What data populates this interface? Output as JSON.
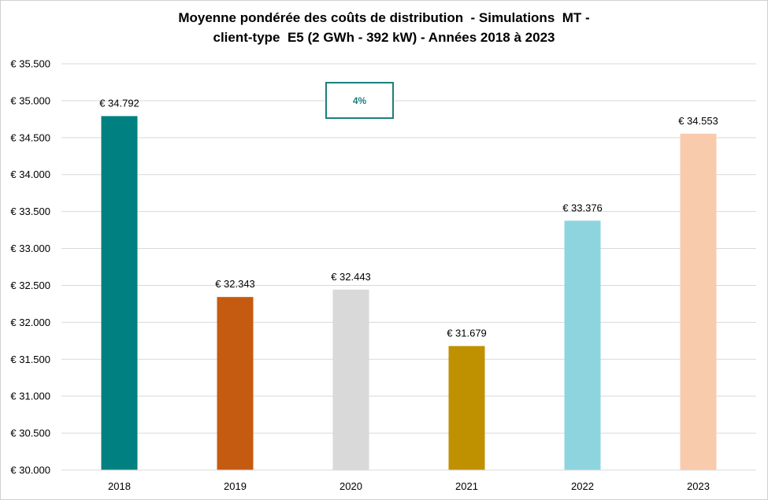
{
  "chart_data": {
    "type": "bar",
    "title": [
      "Moyenne pondérée des coûts de distribution  - Simulations  MT -",
      "client-type  E5 (2 GWh - 392 kW) - Années 2018 à 2023"
    ],
    "categories": [
      "2018",
      "2019",
      "2020",
      "2021",
      "2022",
      "2023"
    ],
    "values": [
      34792,
      32343,
      32443,
      31679,
      33376,
      34553
    ],
    "value_labels": [
      "€ 34.792",
      "€ 32.343",
      "€ 32.443",
      "€ 31.679",
      "€ 33.376",
      "€ 34.553"
    ],
    "colors": [
      "#008080",
      "#c55a11",
      "#d9d9d9",
      "#bf9000",
      "#8ed4df",
      "#f8cbad"
    ],
    "ylim": [
      30000,
      35500
    ],
    "ytick_step": 500,
    "ytick_labels": [
      "€ 30.000",
      "€ 30.500",
      "€ 31.000",
      "€ 31.500",
      "€ 32.000",
      "€ 32.500",
      "€ 33.000",
      "€ 33.500",
      "€ 34.000",
      "€ 34.500",
      "€ 35.000",
      "€ 35.500"
    ],
    "gridlines": true,
    "xlabel": "",
    "ylabel": "",
    "annotation": {
      "text": "4%",
      "color": "#1e7f7a"
    }
  }
}
